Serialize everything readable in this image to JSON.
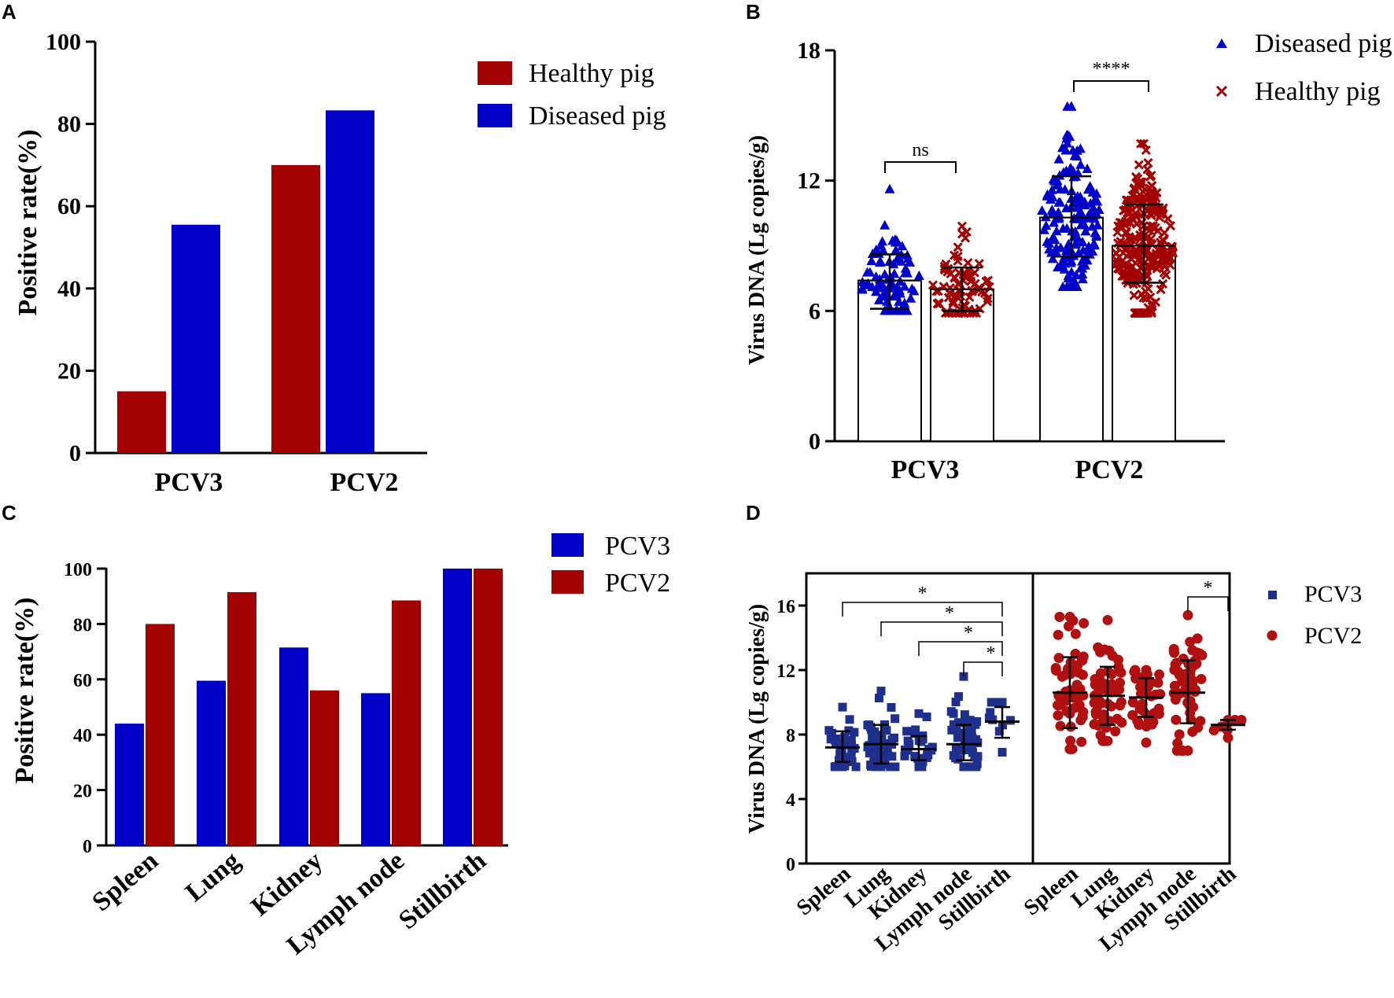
{
  "colors": {
    "healthy": "#a30000",
    "diseased": "#0000c8",
    "pcv3_dot": "#1f2f8c",
    "pcv2_dot": "#b01010",
    "axis": "#000000"
  },
  "chart_data": [
    {
      "panel": "A",
      "type": "bar",
      "ylabel": "Positive rate(%)",
      "ylim": [
        0,
        100
      ],
      "yticks": [
        "0",
        "20",
        "40",
        "60",
        "80",
        "100"
      ],
      "categories": [
        "PCV3",
        "PCV2"
      ],
      "series": [
        {
          "name": "Healthy pig",
          "values": [
            15,
            70
          ]
        },
        {
          "name": "Diseased pig",
          "values": [
            55.5,
            83.3
          ]
        }
      ],
      "legend": [
        "Healthy pig",
        "Diseased pig"
      ]
    },
    {
      "panel": "B",
      "type": "scatter",
      "ylabel": "Virus DNA (Lg copies/g)",
      "ylim": [
        0,
        18
      ],
      "yticks": [
        "0",
        "6",
        "12",
        "18"
      ],
      "categories": [
        "PCV3",
        "PCV2"
      ],
      "series": [
        {
          "name": "Diseased pig",
          "means": [
            7.4,
            10.3
          ],
          "sd_low": [
            6.1,
            8.5
          ],
          "sd_high": [
            8.6,
            12.2
          ],
          "range": [
            [
              6.0,
              11.6
            ],
            [
              7.1,
              15.4
            ]
          ]
        },
        {
          "name": "Healthy pig",
          "means": [
            7.0,
            9.0
          ],
          "sd_low": [
            6.0,
            7.3
          ],
          "sd_high": [
            8.0,
            10.9
          ],
          "range": [
            [
              5.9,
              9.9
            ],
            [
              5.9,
              13.7
            ]
          ]
        }
      ],
      "legend": [
        "Diseased pig",
        "Healthy pig"
      ],
      "annotations": [
        "ns",
        "****"
      ]
    },
    {
      "panel": "C",
      "type": "bar",
      "ylabel": "Positive rate(%)",
      "ylim": [
        0,
        100
      ],
      "yticks": [
        "0",
        "20",
        "40",
        "60",
        "80",
        "100"
      ],
      "categories": [
        "Spleen",
        "Lung",
        "Kidney",
        "Lymph node",
        "Stillbirth"
      ],
      "series": [
        {
          "name": "PCV3",
          "values": [
            44,
            59.5,
            71.5,
            55,
            100
          ]
        },
        {
          "name": "PCV2",
          "values": [
            80,
            91.5,
            56,
            88.5,
            100
          ]
        }
      ],
      "legend": [
        "PCV3",
        "PCV2"
      ]
    },
    {
      "panel": "D",
      "type": "scatter",
      "ylabel": "Virus DNA (Lg copies/g)",
      "ylim": [
        0,
        18
      ],
      "yticks": [
        "0",
        "4",
        "8",
        "12",
        "16"
      ],
      "categories": [
        "Spleen",
        "Lung",
        "Kidney",
        "Lymph node",
        "Stillbirth"
      ],
      "series": [
        {
          "name": "PCV3",
          "means": [
            7.2,
            7.4,
            7.1,
            7.4,
            8.8
          ],
          "sd_low": [
            6.3,
            6.2,
            6.4,
            6.4,
            7.8
          ],
          "sd_high": [
            8.2,
            8.6,
            7.9,
            8.6,
            9.7
          ],
          "range": [
            [
              6.0,
              9.7
            ],
            [
              6.0,
              10.7
            ],
            [
              6.0,
              9.3
            ],
            [
              6.0,
              11.6
            ],
            [
              6.9,
              10.0
            ]
          ]
        },
        {
          "name": "PCV2",
          "means": [
            10.6,
            10.4,
            10.3,
            10.6,
            8.6
          ],
          "sd_low": [
            8.4,
            8.6,
            9.1,
            8.7,
            8.3
          ],
          "sd_high": [
            12.8,
            12.2,
            11.5,
            12.6,
            8.9
          ],
          "range": [
            [
              7.1,
              15.3
            ],
            [
              7.6,
              15.1
            ],
            [
              7.5,
              12.0
            ],
            [
              7.0,
              15.4
            ],
            [
              7.8,
              8.9
            ]
          ]
        }
      ],
      "legend": [
        "PCV3",
        "PCV2"
      ],
      "annotations": [
        "*",
        "*",
        "*",
        "*",
        "*"
      ]
    }
  ],
  "panels": {
    "A": {
      "label": "A"
    },
    "B": {
      "label": "B"
    },
    "C": {
      "label": "C"
    },
    "D": {
      "label": "D"
    }
  }
}
